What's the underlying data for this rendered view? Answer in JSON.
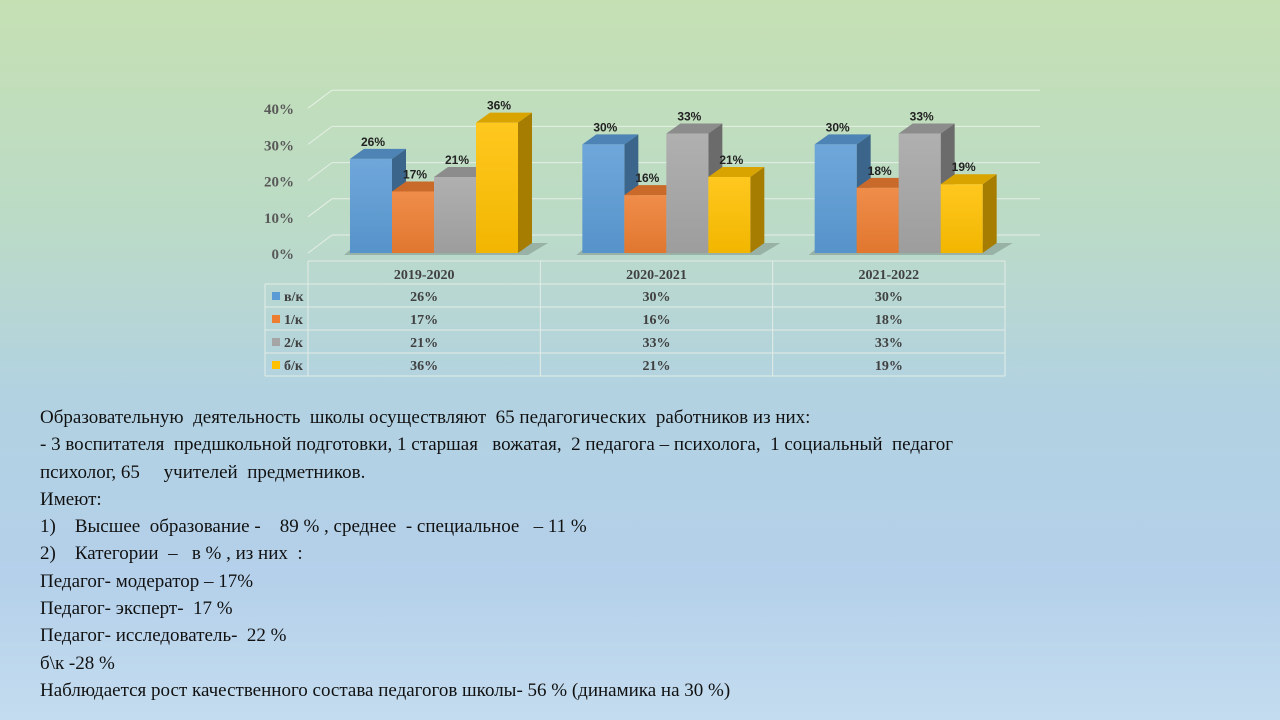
{
  "colors": {
    "series": [
      "#5b9bd5",
      "#ed7d31",
      "#a5a5a5",
      "#ffc000"
    ]
  },
  "chart_data": {
    "type": "bar",
    "categories": [
      "2019-2020",
      "2020-2021",
      "2021-2022"
    ],
    "series": [
      {
        "name": "в/к",
        "values": [
          26,
          30,
          30
        ],
        "labels": [
          "26%",
          "30%",
          "30%"
        ]
      },
      {
        "name": "1/к",
        "values": [
          17,
          16,
          18
        ],
        "labels": [
          "17%",
          "16%",
          "18%"
        ]
      },
      {
        "name": "2/к",
        "values": [
          21,
          33,
          33
        ],
        "labels": [
          "21%",
          "33%",
          "33%"
        ]
      },
      {
        "name": "б/к",
        "values": [
          36,
          21,
          19
        ],
        "labels": [
          "36%",
          "21%",
          "19%"
        ]
      }
    ],
    "y_ticks": [
      "0%",
      "10%",
      "20%",
      "30%",
      "40%"
    ],
    "ylim": [
      0,
      40
    ],
    "grid": true,
    "data_table": true,
    "legend": "in data table"
  },
  "text_lines": [
    "Образовательную  деятельность  школы осуществляют  65 педагогических  работников из них:",
    "- 3 воспитателя  предшкольной подготовки, 1 старшая   вожатая,  2 педагога – психолога,  1 социальный  педагог",
    "психолог, 65     учителей  предметников.",
    "Имеют:",
    "1)    Высшее  образование -    89 % , среднее  - специальное   – 11 %",
    "2)    Категории  –   в % , из них  :",
    "Педагог- модератор – 17%",
    "Педагог- эксперт-  17 %",
    "Педагог- исследователь-  22 %",
    "б\\к -28 %",
    "Наблюдается рост качественного состава педагогов школы- 56 % (динамика на 30 %)"
  ]
}
